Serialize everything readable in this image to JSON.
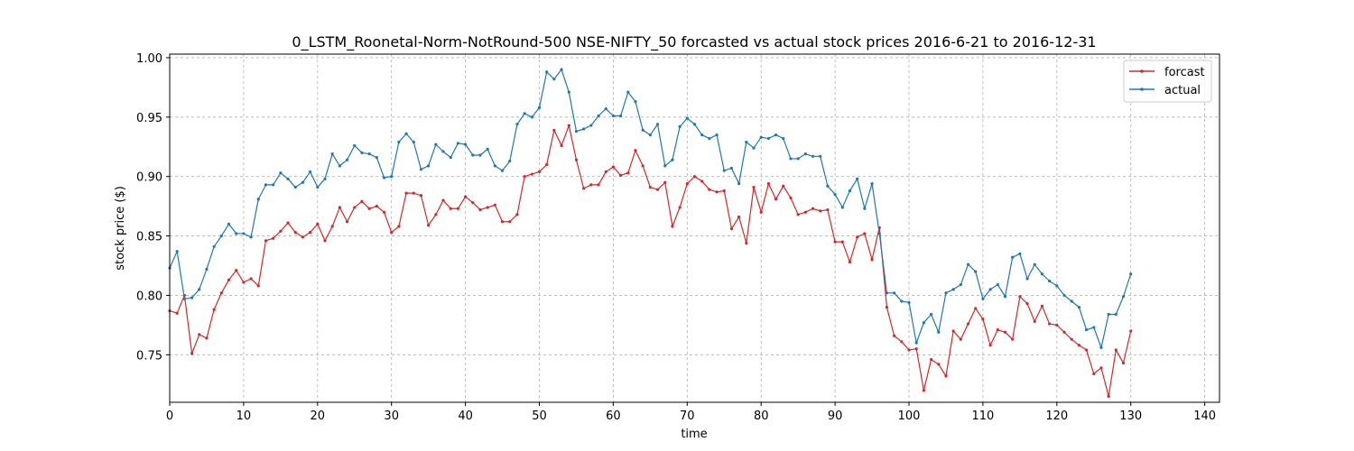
{
  "chart_data": {
    "type": "line",
    "title": "0_LSTM_Roonetal-Norm-NotRound-500 NSE-NIFTY_50 forcasted vs actual stock prices 2016-6-21 to 2016-12-31",
    "xlabel": "time",
    "ylabel": "stock price ($)",
    "xlim": [
      0,
      142
    ],
    "ylim": [
      0.71,
      1.003
    ],
    "xticks": [
      0,
      10,
      20,
      30,
      40,
      50,
      60,
      70,
      80,
      90,
      100,
      110,
      120,
      130,
      140
    ],
    "yticks": [
      0.75,
      0.8,
      0.85,
      0.9,
      0.95,
      1.0
    ],
    "ytick_labels": [
      "0.75",
      "0.80",
      "0.85",
      "0.90",
      "0.95",
      "1.00"
    ],
    "grid": true,
    "legend_position": "top-right",
    "series": [
      {
        "name": "forcast",
        "color": "#d62728",
        "values": [
          0.787,
          0.785,
          0.8,
          0.751,
          0.767,
          0.764,
          0.788,
          0.802,
          0.813,
          0.821,
          0.811,
          0.814,
          0.808,
          0.846,
          0.848,
          0.854,
          0.861,
          0.853,
          0.849,
          0.853,
          0.86,
          0.846,
          0.858,
          0.874,
          0.862,
          0.874,
          0.879,
          0.873,
          0.875,
          0.87,
          0.853,
          0.858,
          0.886,
          0.886,
          0.884,
          0.859,
          0.868,
          0.88,
          0.873,
          0.873,
          0.883,
          0.878,
          0.872,
          0.874,
          0.876,
          0.862,
          0.862,
          0.868,
          0.9,
          0.902,
          0.904,
          0.91,
          0.939,
          0.926,
          0.943,
          0.914,
          0.89,
          0.893,
          0.893,
          0.904,
          0.908,
          0.901,
          0.903,
          0.922,
          0.909,
          0.891,
          0.889,
          0.895,
          0.858,
          0.874,
          0.894,
          0.9,
          0.896,
          0.889,
          0.887,
          0.888,
          0.856,
          0.866,
          0.844,
          0.891,
          0.87,
          0.894,
          0.881,
          0.892,
          0.882,
          0.868,
          0.87,
          0.873,
          0.871,
          0.872,
          0.845,
          0.845,
          0.828,
          0.849,
          0.852,
          0.83,
          0.857,
          0.79,
          0.766,
          0.761,
          0.754,
          0.755,
          0.72,
          0.746,
          0.742,
          0.732,
          0.77,
          0.763,
          0.776,
          0.789,
          0.78,
          0.758,
          0.771,
          0.769,
          0.763,
          0.799,
          0.793,
          0.778,
          0.791,
          0.776,
          0.775,
          0.769,
          0.763,
          0.758,
          0.754,
          0.734,
          0.739,
          0.715,
          0.754,
          0.743,
          0.77
        ]
      },
      {
        "name": "actual",
        "color": "#1f77b4",
        "values": [
          0.823,
          0.837,
          0.797,
          0.798,
          0.805,
          0.822,
          0.841,
          0.85,
          0.86,
          0.852,
          0.852,
          0.849,
          0.881,
          0.893,
          0.893,
          0.903,
          0.898,
          0.891,
          0.895,
          0.904,
          0.891,
          0.898,
          0.919,
          0.909,
          0.914,
          0.926,
          0.92,
          0.919,
          0.916,
          0.899,
          0.9,
          0.929,
          0.936,
          0.929,
          0.906,
          0.909,
          0.927,
          0.921,
          0.916,
          0.928,
          0.927,
          0.918,
          0.918,
          0.923,
          0.909,
          0.905,
          0.913,
          0.944,
          0.953,
          0.95,
          0.958,
          0.988,
          0.982,
          0.99,
          0.971,
          0.938,
          0.94,
          0.943,
          0.951,
          0.957,
          0.951,
          0.951,
          0.971,
          0.963,
          0.939,
          0.935,
          0.944,
          0.909,
          0.914,
          0.942,
          0.949,
          0.944,
          0.935,
          0.932,
          0.935,
          0.905,
          0.907,
          0.894,
          0.929,
          0.924,
          0.933,
          0.932,
          0.935,
          0.932,
          0.915,
          0.915,
          0.919,
          0.917,
          0.917,
          0.892,
          0.885,
          0.874,
          0.888,
          0.898,
          0.873,
          0.894,
          0.852,
          0.802,
          0.802,
          0.795,
          0.794,
          0.76,
          0.777,
          0.784,
          0.769,
          0.802,
          0.805,
          0.809,
          0.826,
          0.82,
          0.797,
          0.805,
          0.809,
          0.799,
          0.832,
          0.835,
          0.814,
          0.826,
          0.818,
          0.812,
          0.808,
          0.8,
          0.795,
          0.79,
          0.771,
          0.773,
          0.756,
          0.784,
          0.784,
          0.799,
          0.818
        ]
      }
    ]
  }
}
